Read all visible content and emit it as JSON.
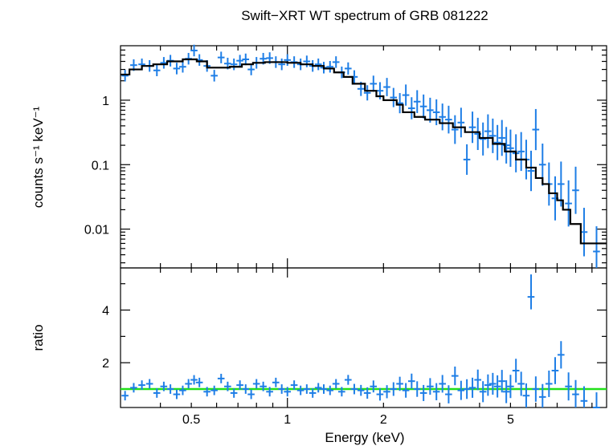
{
  "chart_data": [
    {
      "panel": "spectrum",
      "type": "scatter",
      "title": "Swift−XRT WT spectrum of GRB 081222",
      "ylabel": "counts s⁻¹ keV⁻¹",
      "xlabel": "",
      "x_scale": "log",
      "y_scale": "log",
      "xlim": [
        0.3,
        10
      ],
      "ylim": [
        0.0025,
        7.0
      ],
      "y_ticks": [
        {
          "value": 1,
          "label": "1"
        },
        {
          "value": 0.1,
          "label": "0.1"
        },
        {
          "value": 0.01,
          "label": "0.01"
        }
      ],
      "grid": false,
      "colors": {
        "data": "#1e7ee6",
        "model": "#000000"
      },
      "series": [
        {
          "kind": "data-points-with-error-bars",
          "x": [
            0.31,
            0.33,
            0.35,
            0.37,
            0.39,
            0.41,
            0.43,
            0.45,
            0.47,
            0.49,
            0.51,
            0.53,
            0.56,
            0.59,
            0.62,
            0.65,
            0.68,
            0.71,
            0.74,
            0.77,
            0.8,
            0.84,
            0.88,
            0.92,
            0.96,
            1.0,
            1.05,
            1.1,
            1.15,
            1.2,
            1.25,
            1.3,
            1.36,
            1.42,
            1.48,
            1.55,
            1.62,
            1.7,
            1.78,
            1.86,
            1.95,
            2.05,
            2.15,
            2.25,
            2.35,
            2.45,
            2.55,
            2.67,
            2.8,
            2.93,
            3.06,
            3.2,
            3.35,
            3.5,
            3.65,
            3.8,
            3.95,
            4.1,
            4.25,
            4.4,
            4.55,
            4.7,
            4.85,
            5.0,
            5.2,
            5.4,
            5.6,
            5.8,
            6.0,
            6.3,
            6.6,
            6.9,
            7.2,
            7.6,
            8.0,
            8.5,
            9.3
          ],
          "y": [
            2.4,
            3.5,
            3.6,
            3.4,
            2.9,
            3.8,
            4.1,
            3.1,
            3.3,
            4.4,
            5.9,
            4.2,
            3.4,
            2.4,
            4.6,
            3.7,
            3.6,
            4.1,
            4.3,
            3.0,
            3.8,
            4.4,
            4.5,
            3.9,
            3.6,
            4.2,
            3.9,
            3.6,
            4.0,
            3.4,
            3.6,
            3.2,
            3.3,
            3.9,
            2.7,
            3.1,
            2.3,
            1.5,
            1.3,
            1.8,
            1.4,
            1.6,
            1.1,
            0.9,
            1.2,
            0.75,
            0.95,
            0.8,
            0.7,
            0.65,
            0.55,
            0.5,
            0.35,
            0.45,
            0.12,
            0.38,
            0.3,
            0.25,
            0.33,
            0.28,
            0.22,
            0.26,
            0.2,
            0.18,
            0.15,
            0.16,
            0.12,
            0.08,
            0.35,
            0.1,
            0.05,
            0.03,
            0.05,
            0.025,
            0.04,
            0.009,
            0.0045
          ]
        },
        {
          "kind": "model-step-line",
          "x": [
            0.3,
            0.32,
            0.35,
            0.38,
            0.42,
            0.47,
            0.52,
            0.56,
            0.6,
            0.66,
            0.72,
            0.78,
            0.85,
            0.92,
            1.0,
            1.1,
            1.2,
            1.3,
            1.4,
            1.5,
            1.6,
            1.75,
            1.9,
            2.0,
            2.2,
            2.3,
            2.5,
            2.7,
            3.0,
            3.3,
            3.6,
            4.0,
            4.4,
            4.8,
            5.2,
            5.6,
            6.0,
            6.3,
            6.6,
            7.0,
            7.3,
            7.7,
            8.3,
            9.0,
            10.0
          ],
          "y": [
            2.5,
            3.0,
            3.4,
            3.6,
            4.0,
            4.3,
            4.0,
            3.2,
            3.2,
            3.3,
            3.6,
            3.8,
            3.9,
            3.9,
            3.8,
            3.6,
            3.4,
            3.1,
            2.7,
            2.3,
            1.8,
            1.4,
            1.15,
            1.0,
            0.85,
            0.65,
            0.55,
            0.5,
            0.44,
            0.38,
            0.32,
            0.26,
            0.21,
            0.16,
            0.12,
            0.09,
            0.062,
            0.05,
            0.036,
            0.028,
            0.02,
            0.012,
            0.006,
            0.006,
            0.006
          ]
        }
      ]
    },
    {
      "panel": "ratio",
      "type": "scatter",
      "xlabel": "Energy (keV)",
      "ylabel": "ratio",
      "x_scale": "log",
      "xlim": [
        0.3,
        10
      ],
      "ylim": [
        0.3,
        5.6
      ],
      "x_ticks": [
        {
          "value": 0.5,
          "label": "0.5"
        },
        {
          "value": 1,
          "label": "1"
        },
        {
          "value": 2,
          "label": "2"
        },
        {
          "value": 5,
          "label": "5"
        }
      ],
      "y_ticks": [
        {
          "value": 2,
          "label": "2"
        },
        {
          "value": 4,
          "label": "4"
        }
      ],
      "reference_line": {
        "y": 1,
        "color": "#22e01a"
      },
      "colors": {
        "data": "#1e7ee6"
      },
      "series": [
        {
          "kind": "ratio-points-with-error-bars",
          "x": [
            0.31,
            0.33,
            0.35,
            0.37,
            0.39,
            0.41,
            0.43,
            0.45,
            0.47,
            0.49,
            0.51,
            0.53,
            0.56,
            0.59,
            0.62,
            0.65,
            0.68,
            0.71,
            0.74,
            0.77,
            0.8,
            0.84,
            0.88,
            0.92,
            0.96,
            1.0,
            1.05,
            1.1,
            1.15,
            1.2,
            1.25,
            1.3,
            1.36,
            1.42,
            1.48,
            1.55,
            1.62,
            1.7,
            1.78,
            1.86,
            1.95,
            2.05,
            2.15,
            2.25,
            2.35,
            2.45,
            2.55,
            2.67,
            2.8,
            2.93,
            3.06,
            3.2,
            3.35,
            3.5,
            3.65,
            3.8,
            3.95,
            4.1,
            4.25,
            4.4,
            4.55,
            4.7,
            4.85,
            5.0,
            5.2,
            5.4,
            5.6,
            5.8,
            6.0,
            6.3,
            6.6,
            6.9,
            7.2,
            7.6,
            8.0,
            8.5,
            9.3
          ],
          "y": [
            0.75,
            1.05,
            1.15,
            1.2,
            0.85,
            1.1,
            1.0,
            0.8,
            0.95,
            1.2,
            1.35,
            1.25,
            0.9,
            0.95,
            1.4,
            1.1,
            0.85,
            1.15,
            1.0,
            0.8,
            1.2,
            1.1,
            0.9,
            1.25,
            1.0,
            0.9,
            1.15,
            0.95,
            1.0,
            0.85,
            1.05,
            1.0,
            0.95,
            1.2,
            0.9,
            1.35,
            1.0,
            0.95,
            0.85,
            1.1,
            0.8,
            0.9,
            1.0,
            1.2,
            0.95,
            1.3,
            1.0,
            0.85,
            1.1,
            0.9,
            1.2,
            0.8,
            1.5,
            0.95,
            1.0,
            1.05,
            1.35,
            0.9,
            1.15,
            1.2,
            1.1,
            1.3,
            0.9,
            1.1,
            1.7,
            1.2,
            0.75,
            4.5,
            1.0,
            0.7,
            1.2,
            1.7,
            2.3,
            1.1,
            0.8,
            0.55,
            0.3
          ]
        }
      ]
    }
  ]
}
